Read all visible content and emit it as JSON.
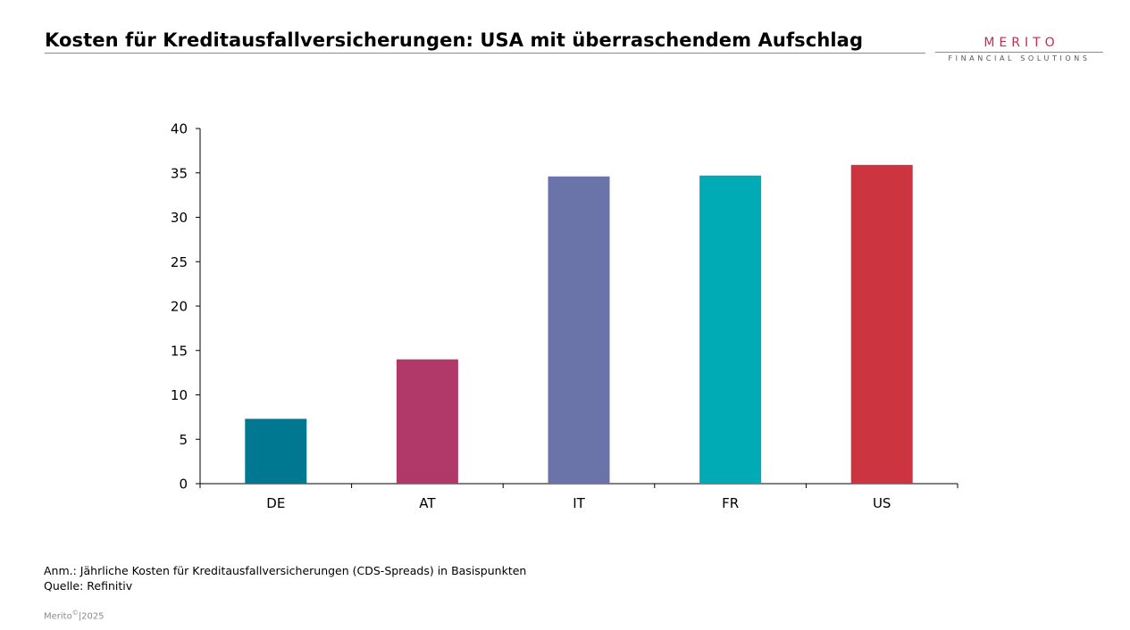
{
  "header": {
    "title": "Kosten für Kreditausfallversicherungen: USA mit überraschendem Aufschlag"
  },
  "logo": {
    "name": "MERITO",
    "subtitle": "FINANCIAL SOLUTIONS",
    "color": "#c0304a"
  },
  "chart_data": {
    "type": "bar",
    "title": "Kosten für Kreditausfallversicherungen: USA mit überraschendem Aufschlag",
    "xlabel": "",
    "ylabel": "",
    "categories": [
      "DE",
      "AT",
      "IT",
      "FR",
      "US"
    ],
    "values": [
      7.3,
      14.0,
      34.6,
      34.7,
      35.9
    ],
    "colors": [
      "#007891",
      "#b0396a",
      "#6a74a8",
      "#00abb5",
      "#cc3440"
    ],
    "ylim": [
      0,
      40
    ],
    "yticks": [
      0,
      5,
      10,
      15,
      20,
      25,
      30,
      35,
      40
    ],
    "grid": false,
    "legend": "none"
  },
  "footer": {
    "note": "Anm.: Jährliche Kosten für Kreditausfallversicherungen (CDS-Spreads) in Basispunkten",
    "source": "Quelle: Refinitiv",
    "copyright_name": "Merito",
    "copyright_symbol": "©",
    "copyright_year": "|2025"
  }
}
